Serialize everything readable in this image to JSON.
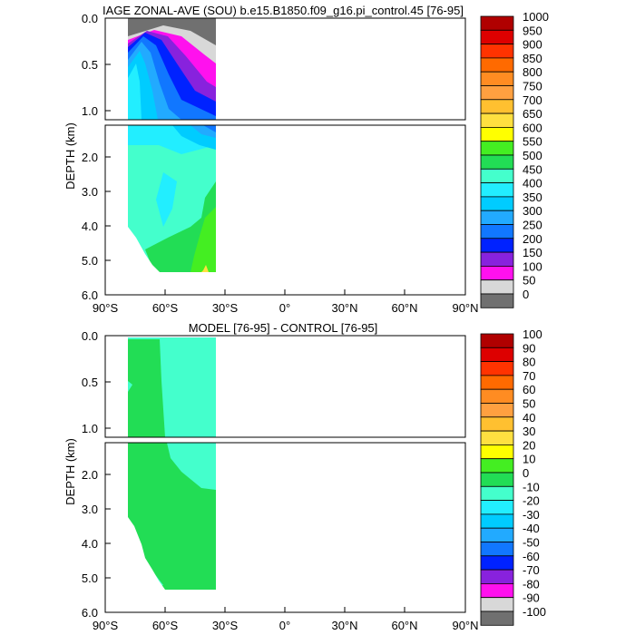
{
  "chart_data": [
    {
      "type": "contour",
      "title": "IAGE ZONAL-AVE (SOU) b.e15.B1850.f09_g16.pi_control.45 [76-95]",
      "xlabel": "",
      "ylabel": "DEPTH (km)",
      "x_ticks": [
        "90°S",
        "60°S",
        "30°S",
        "0°",
        "30°N",
        "60°N",
        "90°N"
      ],
      "x_values": [
        -90,
        -60,
        -30,
        0,
        30,
        60,
        90
      ],
      "xlim": [
        -90,
        90
      ],
      "ylim_upper_km": [
        0,
        1.1
      ],
      "ylim_lower_km": [
        1.1,
        6.0
      ],
      "y_ticks_upper": [
        "0.0",
        "0.5",
        "1.0"
      ],
      "y_ticks_upper_values": [
        0.0,
        0.5,
        1.0
      ],
      "y_ticks_lower": [
        "2.0",
        "3.0",
        "4.0",
        "5.0",
        "6.0"
      ],
      "y_ticks_lower_values": [
        2.0,
        3.0,
        4.0,
        5.0,
        6.0
      ],
      "ocean_extent_lat": [
        -78,
        -34
      ],
      "colorbar_levels": [
        "1000",
        "950",
        "900",
        "850",
        "800",
        "750",
        "700",
        "650",
        "600",
        "550",
        "500",
        "450",
        "400",
        "350",
        "300",
        "250",
        "200",
        "150",
        "100",
        "50",
        "0"
      ],
      "colorbar_colors": [
        "#b00000",
        "#dd0000",
        "#ff3300",
        "#ff6a00",
        "#ff8c22",
        "#ffa040",
        "#ffc030",
        "#ffe040",
        "#ffff00",
        "#44ee22",
        "#22dd55",
        "#44ffcc",
        "#22eeff",
        "#00ccff",
        "#22aaff",
        "#1177ff",
        "#0022ff",
        "#8822dd",
        "#ff11ee",
        "#d8d8d8",
        "#707070"
      ]
    },
    {
      "type": "contour",
      "title": "MODEL [76-95] - CONTROL [76-95]",
      "xlabel": "",
      "ylabel": "DEPTH (km)",
      "x_ticks": [
        "90°S",
        "60°S",
        "30°S",
        "0°",
        "30°N",
        "60°N",
        "90°N"
      ],
      "x_values": [
        -90,
        -60,
        -30,
        0,
        30,
        60,
        90
      ],
      "xlim": [
        -90,
        90
      ],
      "ylim_upper_km": [
        0,
        1.1
      ],
      "ylim_lower_km": [
        1.1,
        6.0
      ],
      "y_ticks_upper": [
        "0.0",
        "0.5",
        "1.0"
      ],
      "y_ticks_upper_values": [
        0.0,
        0.5,
        1.0
      ],
      "y_ticks_lower": [
        "2.0",
        "3.0",
        "4.0",
        "5.0",
        "6.0"
      ],
      "y_ticks_lower_values": [
        2.0,
        3.0,
        4.0,
        5.0,
        6.0
      ],
      "ocean_extent_lat": [
        -78,
        -34
      ],
      "colorbar_levels": [
        "100",
        "90",
        "80",
        "70",
        "60",
        "50",
        "40",
        "30",
        "20",
        "10",
        "0",
        "-10",
        "-20",
        "-30",
        "-40",
        "-50",
        "-60",
        "-70",
        "-80",
        "-90",
        "-100"
      ],
      "colorbar_colors": [
        "#b00000",
        "#dd0000",
        "#ff3300",
        "#ff6a00",
        "#ff8c22",
        "#ffa040",
        "#ffc030",
        "#ffe040",
        "#ffff00",
        "#44ee22",
        "#22dd55",
        "#44ffcc",
        "#22eeff",
        "#00ccff",
        "#22aaff",
        "#1177ff",
        "#0022ff",
        "#8822dd",
        "#ff11ee",
        "#d8d8d8",
        "#707070"
      ]
    }
  ]
}
